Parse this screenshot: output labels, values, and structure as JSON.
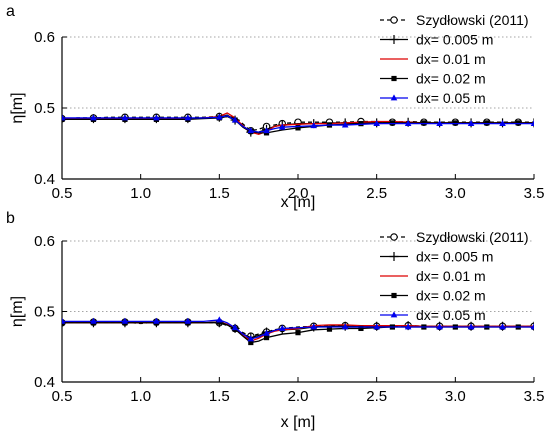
{
  "chart_data": [
    {
      "panel_label": "a",
      "type": "line",
      "xlabel": "x [m]",
      "ylabel": "η[m]",
      "xlim": [
        0.5,
        3.5
      ],
      "ylim": [
        0.4,
        0.6
      ],
      "xticks": [
        "0.5",
        "1.0",
        "1.5",
        "2.0",
        "2.5",
        "3.0",
        "3.5"
      ],
      "yticks": [
        "0.4",
        "0.5",
        "0.6"
      ],
      "ygrid": [
        0.5,
        0.6
      ],
      "legend_position": "top-right",
      "series": [
        {
          "name": "Szydłowski (2011)",
          "color": "#000000",
          "marker": "open-circle",
          "line": "dashed",
          "x": [
            0.5,
            0.6,
            0.7,
            0.8,
            0.9,
            1.0,
            1.1,
            1.2,
            1.3,
            1.4,
            1.5,
            1.6,
            1.7,
            1.75,
            1.8,
            1.85,
            1.9,
            1.95,
            2.0,
            2.1,
            2.2,
            2.3,
            2.4,
            2.5,
            2.6,
            2.7,
            2.8,
            2.9,
            3.0,
            3.1,
            3.2,
            3.3,
            3.4,
            3.5
          ],
          "y": [
            0.485,
            0.486,
            0.486,
            0.487,
            0.487,
            0.487,
            0.487,
            0.487,
            0.487,
            0.487,
            0.488,
            0.487,
            0.468,
            0.47,
            0.474,
            0.476,
            0.478,
            0.479,
            0.48,
            0.48,
            0.48,
            0.48,
            0.481,
            0.481,
            0.48,
            0.481,
            0.48,
            0.48,
            0.48,
            0.48,
            0.48,
            0.48,
            0.48,
            0.48
          ]
        },
        {
          "name": "dx= 0.005 m",
          "color": "#000000",
          "marker": "plus",
          "line": "solid",
          "x": [
            0.5,
            0.6,
            0.7,
            0.8,
            0.9,
            1.0,
            1.1,
            1.2,
            1.3,
            1.4,
            1.5,
            1.55,
            1.6,
            1.65,
            1.7,
            1.75,
            1.8,
            1.85,
            1.9,
            2.0,
            2.1,
            2.2,
            2.3,
            2.4,
            2.5,
            2.6,
            2.7,
            2.8,
            2.9,
            3.0,
            3.1,
            3.2,
            3.3,
            3.4,
            3.5
          ],
          "y": [
            0.485,
            0.485,
            0.485,
            0.485,
            0.485,
            0.485,
            0.485,
            0.485,
            0.485,
            0.486,
            0.487,
            0.49,
            0.483,
            0.473,
            0.466,
            0.466,
            0.47,
            0.474,
            0.476,
            0.478,
            0.478,
            0.479,
            0.479,
            0.479,
            0.479,
            0.48,
            0.48,
            0.479,
            0.479,
            0.479,
            0.479,
            0.479,
            0.479,
            0.479,
            0.479
          ]
        },
        {
          "name": "dx= 0.01 m",
          "color": "#dd0000",
          "marker": "none",
          "line": "solid",
          "x": [
            0.5,
            0.6,
            0.7,
            0.8,
            0.9,
            1.0,
            1.1,
            1.2,
            1.3,
            1.4,
            1.5,
            1.55,
            1.6,
            1.65,
            1.7,
            1.75,
            1.8,
            1.85,
            1.9,
            2.0,
            2.1,
            2.2,
            2.3,
            2.4,
            2.5,
            2.6,
            2.7,
            2.8,
            2.9,
            3.0,
            3.1,
            3.2,
            3.3,
            3.4,
            3.5
          ],
          "y": [
            0.485,
            0.485,
            0.485,
            0.485,
            0.485,
            0.485,
            0.485,
            0.485,
            0.485,
            0.486,
            0.488,
            0.493,
            0.486,
            0.475,
            0.466,
            0.463,
            0.467,
            0.474,
            0.476,
            0.477,
            0.478,
            0.478,
            0.479,
            0.48,
            0.481,
            0.481,
            0.48,
            0.479,
            0.479,
            0.479,
            0.479,
            0.479,
            0.479,
            0.479,
            0.479
          ]
        },
        {
          "name": "dx= 0.02 m",
          "color": "#000000",
          "marker": "filled-square",
          "line": "solid",
          "x": [
            0.5,
            0.6,
            0.7,
            0.8,
            0.9,
            1.0,
            1.1,
            1.2,
            1.3,
            1.4,
            1.5,
            1.55,
            1.6,
            1.65,
            1.7,
            1.75,
            1.8,
            1.9,
            2.0,
            2.1,
            2.2,
            2.3,
            2.4,
            2.5,
            2.6,
            2.7,
            2.8,
            2.9,
            3.0,
            3.1,
            3.2,
            3.3,
            3.4,
            3.5
          ],
          "y": [
            0.484,
            0.484,
            0.484,
            0.484,
            0.484,
            0.484,
            0.484,
            0.484,
            0.484,
            0.485,
            0.486,
            0.488,
            0.483,
            0.474,
            0.467,
            0.465,
            0.465,
            0.469,
            0.472,
            0.474,
            0.476,
            0.477,
            0.478,
            0.478,
            0.479,
            0.479,
            0.479,
            0.479,
            0.479,
            0.479,
            0.479,
            0.479,
            0.479,
            0.479
          ]
        },
        {
          "name": "dx= 0.05 m",
          "color": "#0000ee",
          "marker": "filled-triangle",
          "line": "solid",
          "x": [
            0.5,
            0.6,
            0.7,
            0.8,
            0.9,
            1.0,
            1.1,
            1.2,
            1.3,
            1.4,
            1.5,
            1.55,
            1.6,
            1.65,
            1.7,
            1.75,
            1.8,
            1.85,
            1.9,
            2.0,
            2.1,
            2.2,
            2.3,
            2.4,
            2.5,
            2.6,
            2.7,
            2.8,
            2.9,
            3.0,
            3.1,
            3.2,
            3.3,
            3.4,
            3.5
          ],
          "y": [
            0.486,
            0.486,
            0.486,
            0.486,
            0.486,
            0.486,
            0.486,
            0.486,
            0.486,
            0.486,
            0.487,
            0.489,
            0.483,
            0.474,
            0.468,
            0.466,
            0.468,
            0.471,
            0.473,
            0.474,
            0.475,
            0.476,
            0.476,
            0.477,
            0.478,
            0.478,
            0.478,
            0.478,
            0.478,
            0.478,
            0.478,
            0.478,
            0.478,
            0.478,
            0.478
          ]
        }
      ]
    },
    {
      "panel_label": "b",
      "type": "line",
      "xlabel": "x [m]",
      "ylabel": "η[m]",
      "xlim": [
        0.5,
        3.5
      ],
      "ylim": [
        0.4,
        0.6
      ],
      "xticks": [
        "0.5",
        "1.0",
        "1.5",
        "2.0",
        "2.5",
        "3.0",
        "3.5"
      ],
      "yticks": [
        "0.4",
        "0.5",
        "0.6"
      ],
      "ygrid": [
        0.5,
        0.6
      ],
      "legend_position": "top-right",
      "series": [
        {
          "name": "Szydłowski (2011)",
          "color": "#000000",
          "marker": "open-circle",
          "line": "dashed",
          "x": [
            0.5,
            0.6,
            0.7,
            0.8,
            0.9,
            1.0,
            1.1,
            1.2,
            1.3,
            1.4,
            1.5,
            1.55,
            1.6,
            1.65,
            1.7,
            1.75,
            1.8,
            1.85,
            1.9,
            2.0,
            2.1,
            2.2,
            2.3,
            2.4,
            2.5,
            2.6,
            2.7,
            2.8,
            2.9,
            3.0,
            3.1,
            3.2,
            3.3,
            3.4,
            3.5
          ],
          "y": [
            0.484,
            0.484,
            0.485,
            0.484,
            0.485,
            0.483,
            0.485,
            0.484,
            0.485,
            0.484,
            0.484,
            0.48,
            0.476,
            0.47,
            0.465,
            0.468,
            0.471,
            0.474,
            0.476,
            0.478,
            0.479,
            0.479,
            0.48,
            0.479,
            0.479,
            0.479,
            0.48,
            0.479,
            0.479,
            0.479,
            0.479,
            0.479,
            0.479,
            0.479,
            0.479
          ]
        },
        {
          "name": "dx= 0.005 m",
          "color": "#000000",
          "marker": "plus",
          "line": "solid",
          "x": [
            0.5,
            0.6,
            0.7,
            0.8,
            0.9,
            1.0,
            1.1,
            1.2,
            1.3,
            1.4,
            1.5,
            1.55,
            1.6,
            1.65,
            1.7,
            1.75,
            1.8,
            1.85,
            1.9,
            2.0,
            2.1,
            2.2,
            2.3,
            2.4,
            2.5,
            2.6,
            2.7,
            2.8,
            2.9,
            3.0,
            3.1,
            3.2,
            3.3,
            3.4,
            3.5
          ],
          "y": [
            0.484,
            0.484,
            0.484,
            0.484,
            0.484,
            0.484,
            0.484,
            0.484,
            0.484,
            0.484,
            0.484,
            0.481,
            0.476,
            0.468,
            0.463,
            0.466,
            0.471,
            0.473,
            0.474,
            0.475,
            0.478,
            0.479,
            0.479,
            0.479,
            0.479,
            0.48,
            0.48,
            0.479,
            0.479,
            0.479,
            0.479,
            0.479,
            0.479,
            0.479,
            0.479
          ]
        },
        {
          "name": "dx= 0.01 m",
          "color": "#dd0000",
          "marker": "none",
          "line": "solid",
          "x": [
            0.5,
            0.6,
            0.7,
            0.8,
            0.9,
            1.0,
            1.1,
            1.2,
            1.3,
            1.4,
            1.5,
            1.55,
            1.6,
            1.65,
            1.7,
            1.75,
            1.8,
            1.85,
            1.9,
            2.0,
            2.1,
            2.2,
            2.3,
            2.4,
            2.5,
            2.6,
            2.7,
            2.8,
            2.9,
            3.0,
            3.1,
            3.2,
            3.3,
            3.4,
            3.5
          ],
          "y": [
            0.484,
            0.484,
            0.484,
            0.484,
            0.484,
            0.484,
            0.484,
            0.484,
            0.484,
            0.484,
            0.485,
            0.482,
            0.476,
            0.466,
            0.458,
            0.462,
            0.468,
            0.472,
            0.474,
            0.476,
            0.48,
            0.481,
            0.481,
            0.48,
            0.48,
            0.48,
            0.48,
            0.479,
            0.479,
            0.479,
            0.479,
            0.479,
            0.479,
            0.479,
            0.479
          ]
        },
        {
          "name": "dx= 0.02 m",
          "color": "#000000",
          "marker": "filled-square",
          "line": "solid",
          "x": [
            0.5,
            0.6,
            0.7,
            0.8,
            0.9,
            1.0,
            1.1,
            1.2,
            1.3,
            1.4,
            1.5,
            1.55,
            1.6,
            1.65,
            1.7,
            1.75,
            1.8,
            1.9,
            2.0,
            2.1,
            2.2,
            2.3,
            2.4,
            2.5,
            2.6,
            2.7,
            2.8,
            2.9,
            3.0,
            3.1,
            3.2,
            3.3,
            3.4,
            3.5
          ],
          "y": [
            0.484,
            0.484,
            0.484,
            0.484,
            0.484,
            0.484,
            0.484,
            0.484,
            0.484,
            0.484,
            0.485,
            0.481,
            0.475,
            0.465,
            0.456,
            0.458,
            0.463,
            0.468,
            0.47,
            0.474,
            0.475,
            0.476,
            0.476,
            0.477,
            0.478,
            0.478,
            0.478,
            0.478,
            0.478,
            0.478,
            0.478,
            0.478,
            0.478,
            0.478
          ]
        },
        {
          "name": "dx= 0.05 m",
          "color": "#0000ee",
          "marker": "filled-triangle",
          "line": "solid",
          "x": [
            0.5,
            0.6,
            0.7,
            0.8,
            0.9,
            1.0,
            1.1,
            1.2,
            1.3,
            1.4,
            1.5,
            1.55,
            1.6,
            1.65,
            1.7,
            1.75,
            1.8,
            1.85,
            1.9,
            2.0,
            2.1,
            2.2,
            2.3,
            2.4,
            2.5,
            2.6,
            2.7,
            2.8,
            2.9,
            3.0,
            3.1,
            3.2,
            3.3,
            3.4,
            3.5
          ],
          "y": [
            0.486,
            0.486,
            0.486,
            0.486,
            0.486,
            0.486,
            0.486,
            0.486,
            0.486,
            0.486,
            0.488,
            0.484,
            0.477,
            0.468,
            0.461,
            0.464,
            0.469,
            0.473,
            0.476,
            0.477,
            0.478,
            0.478,
            0.478,
            0.478,
            0.478,
            0.478,
            0.478,
            0.478,
            0.478,
            0.478,
            0.478,
            0.478,
            0.478,
            0.478,
            0.478
          ]
        }
      ]
    }
  ]
}
